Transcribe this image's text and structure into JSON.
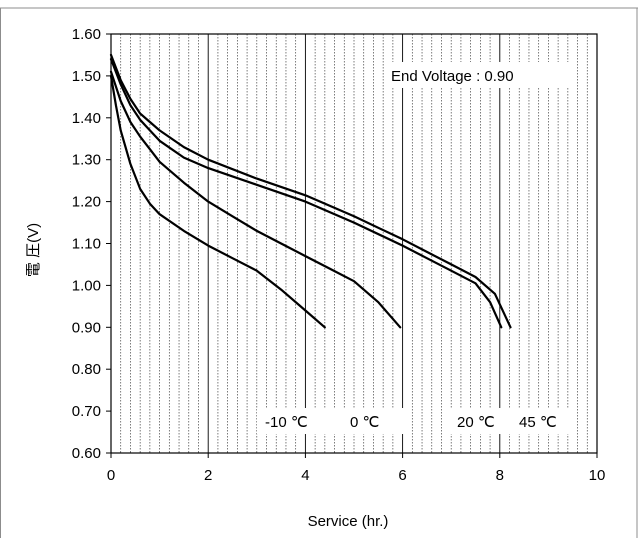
{
  "chart_data": {
    "type": "line",
    "xlabel": "Service (hr.)",
    "ylabel": "電 圧(V)",
    "xlim": [
      0,
      10
    ],
    "ylim": [
      0.6,
      1.6
    ],
    "x_ticks": [
      "0",
      "2",
      "4",
      "6",
      "8",
      "10"
    ],
    "y_ticks": [
      "0.60",
      "0.70",
      "0.80",
      "0.90",
      "1.00",
      "1.10",
      "1.20",
      "1.30",
      "1.40",
      "1.50",
      "1.60"
    ],
    "grid": "vertical",
    "annotation": "End Voltage : 0.90",
    "series": [
      {
        "name": "-10 ℃",
        "x": [
          0,
          0.1,
          0.2,
          0.4,
          0.6,
          0.8,
          1.0,
          1.5,
          2.0,
          2.5,
          3.0,
          3.5,
          4.0,
          4.4
        ],
        "y": [
          1.5,
          1.43,
          1.37,
          1.29,
          1.23,
          1.195,
          1.17,
          1.13,
          1.095,
          1.065,
          1.035,
          0.99,
          0.94,
          0.9
        ]
      },
      {
        "name": "0 ℃",
        "x": [
          0,
          0.2,
          0.4,
          0.6,
          0.8,
          1.0,
          1.5,
          2.0,
          2.5,
          3.0,
          3.5,
          4.0,
          4.5,
          5.0,
          5.5,
          5.95
        ],
        "y": [
          1.51,
          1.44,
          1.39,
          1.355,
          1.325,
          1.295,
          1.245,
          1.2,
          1.165,
          1.13,
          1.1,
          1.07,
          1.04,
          1.01,
          0.96,
          0.9
        ]
      },
      {
        "name": "20 ℃",
        "x": [
          0,
          0.2,
          0.4,
          0.6,
          0.8,
          1.0,
          1.5,
          2.0,
          3.0,
          4.0,
          5.0,
          6.0,
          6.5,
          7.0,
          7.5,
          7.8,
          8.03
        ],
        "y": [
          1.54,
          1.48,
          1.43,
          1.395,
          1.37,
          1.345,
          1.305,
          1.28,
          1.24,
          1.2,
          1.15,
          1.095,
          1.065,
          1.035,
          1.005,
          0.96,
          0.9
        ]
      },
      {
        "name": "45 ℃",
        "x": [
          0,
          0.2,
          0.4,
          0.6,
          0.8,
          1.0,
          1.5,
          2.0,
          3.0,
          4.0,
          5.0,
          6.0,
          6.5,
          7.0,
          7.5,
          7.9,
          8.22
        ],
        "y": [
          1.55,
          1.49,
          1.445,
          1.41,
          1.39,
          1.37,
          1.33,
          1.3,
          1.255,
          1.215,
          1.165,
          1.11,
          1.08,
          1.05,
          1.02,
          0.98,
          0.9
        ]
      }
    ]
  }
}
